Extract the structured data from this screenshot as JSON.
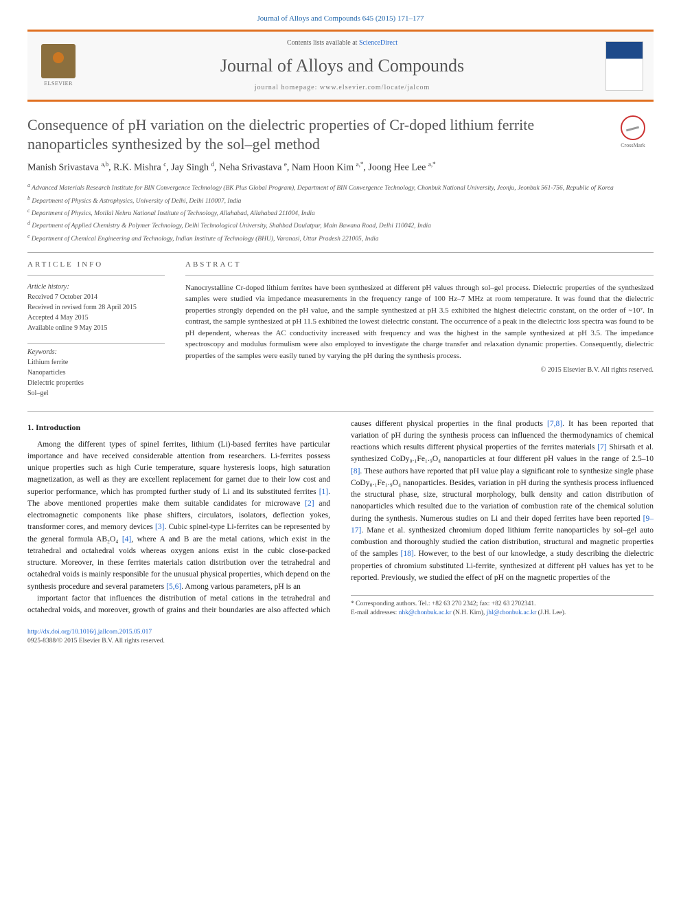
{
  "journal_ref": "Journal of Alloys and Compounds 645 (2015) 171–177",
  "header": {
    "elsevier": "ELSEVIER",
    "contents_prefix": "Contents lists available at ",
    "contents_link": "ScienceDirect",
    "journal_name": "Journal of Alloys and Compounds",
    "homepage_prefix": "journal homepage: ",
    "homepage_url": "www.elsevier.com/locate/jalcom"
  },
  "article": {
    "title": "Consequence of pH variation on the dielectric properties of Cr-doped lithium ferrite nanoparticles synthesized by the sol–gel method",
    "crossmark": "CrossMark",
    "authors_html": "Manish Srivastava <sup>a,b</sup>, R.K. Mishra <sup>c</sup>, Jay Singh <sup>d</sup>, Neha Srivastava <sup>e</sup>, Nam Hoon Kim <sup>a,*</sup>, Joong Hee Lee <sup>a,*</sup>",
    "affiliations": [
      "a Advanced Materials Research Institute for BIN Convergence Technology (BK Plus Global Program), Department of BIN Convergence Technology, Chonbuk National University, Jeonju, Jeonbuk 561-756, Republic of Korea",
      "b Department of Physics & Astrophysics, University of Delhi, Delhi 110007, India",
      "c Department of Physics, Motilal Nehru National Institute of Technology, Allahabad, Allahabad 211004, India",
      "d Department of Applied Chemistry & Polymer Technology, Delhi Technological University, Shahbad Daulatpur, Main Bawana Road, Delhi 110042, India",
      "e Department of Chemical Engineering and Technology, Indian Institute of Technology (BHU), Varanasi, Uttar Pradesh 221005, India"
    ]
  },
  "info": {
    "heading": "ARTICLE INFO",
    "history_label": "Article history:",
    "history": [
      "Received 7 October 2014",
      "Received in revised form 28 April 2015",
      "Accepted 4 May 2015",
      "Available online 9 May 2015"
    ],
    "keywords_label": "Keywords:",
    "keywords": [
      "Lithium ferrite",
      "Nanoparticles",
      "Dielectric properties",
      "Sol–gel"
    ]
  },
  "abstract": {
    "heading": "ABSTRACT",
    "text": "Nanocrystalline Cr-doped lithium ferrites have been synthesized at different pH values through sol–gel process. Dielectric properties of the synthesized samples were studied via impedance measurements in the frequency range of 100 Hz–7 MHz at room temperature. It was found that the dielectric properties strongly depended on the pH value, and the sample synthesized at pH 3.5 exhibited the highest dielectric constant, on the order of ~10⁷. In contrast, the sample synthesized at pH 11.5 exhibited the lowest dielectric constant. The occurrence of a peak in the dielectric loss spectra was found to be pH dependent, whereas the AC conductivity increased with frequency and was the highest in the sample synthesized at pH 3.5. The impedance spectroscopy and modulus formulism were also employed to investigate the charge transfer and relaxation dynamic properties. Consequently, dielectric properties of the samples were easily tuned by varying the pH during the synthesis process.",
    "copyright": "© 2015 Elsevier B.V. All rights reserved."
  },
  "body": {
    "section_heading": "1. Introduction",
    "paragraph": "Among the different types of spinel ferrites, lithium (Li)-based ferrites have particular importance and have received considerable attention from researchers. Li-ferrites possess unique properties such as high Curie temperature, square hysteresis loops, high saturation magnetization, as well as they are excellent replacement for garnet due to their low cost and superior performance, which has prompted further study of Li and its substituted ferrites [1]. The above mentioned properties make them suitable candidates for microwave [2] and electromagnetic components like phase shifters, circulators, isolators, deflection yokes, transformer cores, and memory devices [3]. Cubic spinel-type Li-ferrites can be represented by the general formula AB₂O₄ [4], where A and B are the metal cations, which exist in the tetrahedral and octahedral voids whereas oxygen anions exist in the cubic close-packed structure. Moreover, in these ferrites materials cation distribution over the tetrahedral and octahedral voids is mainly responsible for the unusual physical properties, which depend on the synthesis procedure and several parameters [5,6]. Among various parameters, pH is an",
    "paragraph2": "important factor that influences the distribution of metal cations in the tetrahedral and octahedral voids, and moreover, growth of grains and their boundaries are also affected which causes different physical properties in the final products [7,8]. It has been reported that variation of pH during the synthesis process can influenced the thermodynamics of chemical reactions which results different physical properties of the ferrites materials [7] Shirsath et al. synthesized CoDy₀.₁Fe₁.₉O₄ nanoparticles at four different pH values in the range of 2.5–10 [8]. These authors have reported that pH value play a significant role to synthesize single phase CoDy₀.₁Fe₁.₉O₄ nanoparticles. Besides, variation in pH during the synthesis process influenced the structural phase, size, structural morphology, bulk density and cation distribution of nanoparticles which resulted due to the variation of combustion rate of the chemical solution during the synthesis. Numerous studies on Li and their doped ferrites have been reported [9–17]. Mane et al. synthesized chromium doped lithium ferrite nanoparticles by sol–gel auto combustion and thoroughly studied the cation distribution, structural and magnetic properties of the samples [18]. However, to the best of our knowledge, a study describing the dielectric properties of chromium substituted Li-ferrite, synthesized at different pH values has yet to be reported. Previously, we studied the effect of pH on the magnetic properties of the"
  },
  "footnotes": {
    "corr": "* Corresponding authors. Tel.: +82 63 270 2342; fax: +82 63 2702341.",
    "emails_label": "E-mail addresses: ",
    "email1": "nhk@chonbuk.ac.kr",
    "email1_name": " (N.H. Kim), ",
    "email2": "jhl@chonbuk.ac.kr",
    "email2_name": " (J.H. Lee)."
  },
  "doi": {
    "url": "http://dx.doi.org/10.1016/j.jallcom.2015.05.017",
    "issn": "0925-8388/© 2015 Elsevier B.V. All rights reserved."
  },
  "colors": {
    "accent_orange": "#e07020",
    "link_blue": "#2266cc",
    "text_gray": "#555555",
    "body_text": "#333333"
  },
  "typography": {
    "title_fontsize": 22,
    "journal_name_fontsize": 26,
    "body_fontsize": 11.5,
    "abstract_fontsize": 11,
    "affil_fontsize": 9.5,
    "footnote_fontsize": 9.5
  }
}
